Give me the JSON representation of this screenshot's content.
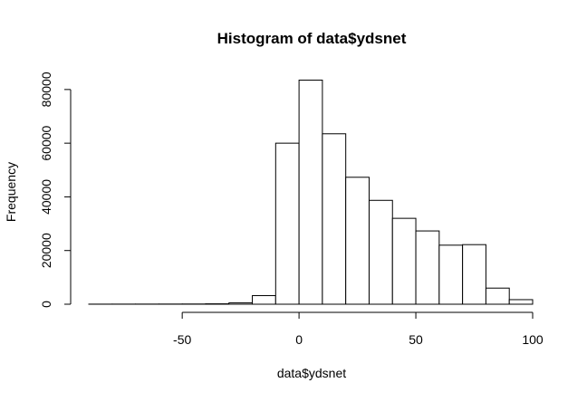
{
  "chart_data": {
    "type": "bar",
    "title": "Histogram of data$ydsnet",
    "xlabel": "data$ydsnet",
    "ylabel": "Frequency",
    "xlim": [
      -90,
      100
    ],
    "ylim": [
      0,
      84000
    ],
    "x_ticks": [
      -50,
      0,
      50,
      100
    ],
    "y_ticks": [
      0,
      20000,
      40000,
      60000,
      80000
    ],
    "bin_edges": [
      -90,
      -80,
      -70,
      -60,
      -50,
      -40,
      -30,
      -20,
      -10,
      0,
      10,
      20,
      30,
      40,
      50,
      60,
      70,
      80,
      90,
      100
    ],
    "values": [
      30,
      40,
      50,
      60,
      80,
      150,
      500,
      3200,
      60000,
      83500,
      63500,
      47300,
      38700,
      32000,
      27300,
      22000,
      22200,
      6000,
      1700
    ],
    "grid": false
  }
}
